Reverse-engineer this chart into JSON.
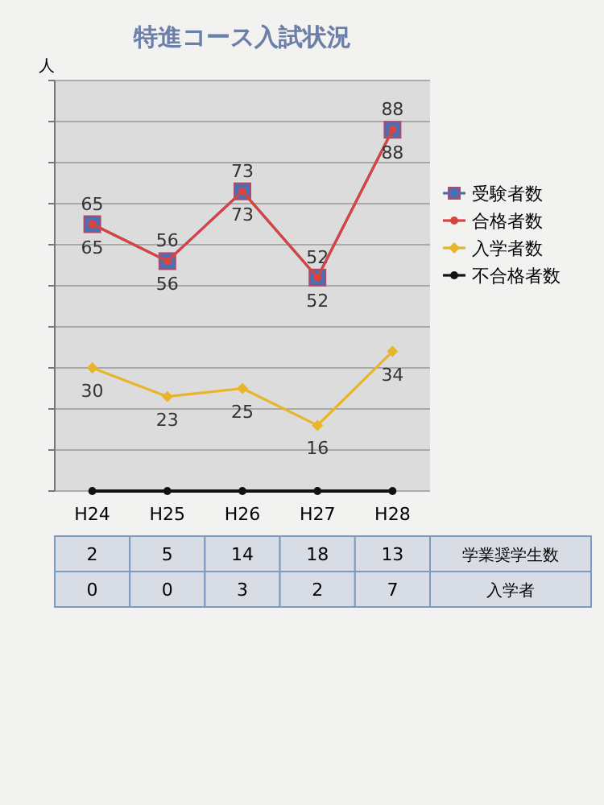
{
  "chart_data": {
    "type": "line",
    "title": "特進コース入試状況",
    "ylabel": "人",
    "categories": [
      "H24",
      "H25",
      "H26",
      "H27",
      "H28"
    ],
    "ylim": [
      0,
      100
    ],
    "yticks": [
      {
        "value": 0,
        "label": null
      },
      {
        "value": 10,
        "label": null
      },
      {
        "value": 20,
        "label": null
      },
      {
        "value": 30,
        "label": null
      },
      {
        "value": 40,
        "label": null
      },
      {
        "value": 50,
        "label": null
      },
      {
        "value": 60,
        "label": null
      },
      {
        "value": 70,
        "label": null
      },
      {
        "value": 80,
        "label": null
      },
      {
        "value": 90,
        "label": null
      },
      {
        "value": 100,
        "label": null
      }
    ],
    "grid": "y",
    "legend": "right",
    "line_style": "solid",
    "series": [
      {
        "name": "受験者数",
        "color": "#4a6fb5",
        "marker": "square",
        "values": [
          65,
          56,
          73,
          52,
          88
        ],
        "value_labels": [
          "65",
          "56",
          "73",
          "52",
          "88"
        ]
      },
      {
        "name": "合格者数",
        "color": "#d9443f",
        "marker": "circle",
        "values": [
          65,
          56,
          73,
          52,
          88
        ],
        "value_labels": [
          "65",
          "56",
          "73",
          "52",
          "88"
        ]
      },
      {
        "name": "入学者数",
        "color": "#e8b52a",
        "marker": "diamond",
        "values": [
          30,
          23,
          25,
          16,
          34
        ],
        "value_labels": [
          "30",
          "23",
          "25",
          "16",
          "34"
        ]
      },
      {
        "name": "不合格者数",
        "color": "#111111",
        "marker": "circle",
        "values": [
          0,
          0,
          0,
          0,
          0
        ]
      }
    ],
    "annotations": [
      "2",
      "5",
      "14",
      "18",
      "13",
      "学業奨学生数",
      "0",
      "0",
      "3",
      "2",
      "7",
      "入学者"
    ]
  }
}
